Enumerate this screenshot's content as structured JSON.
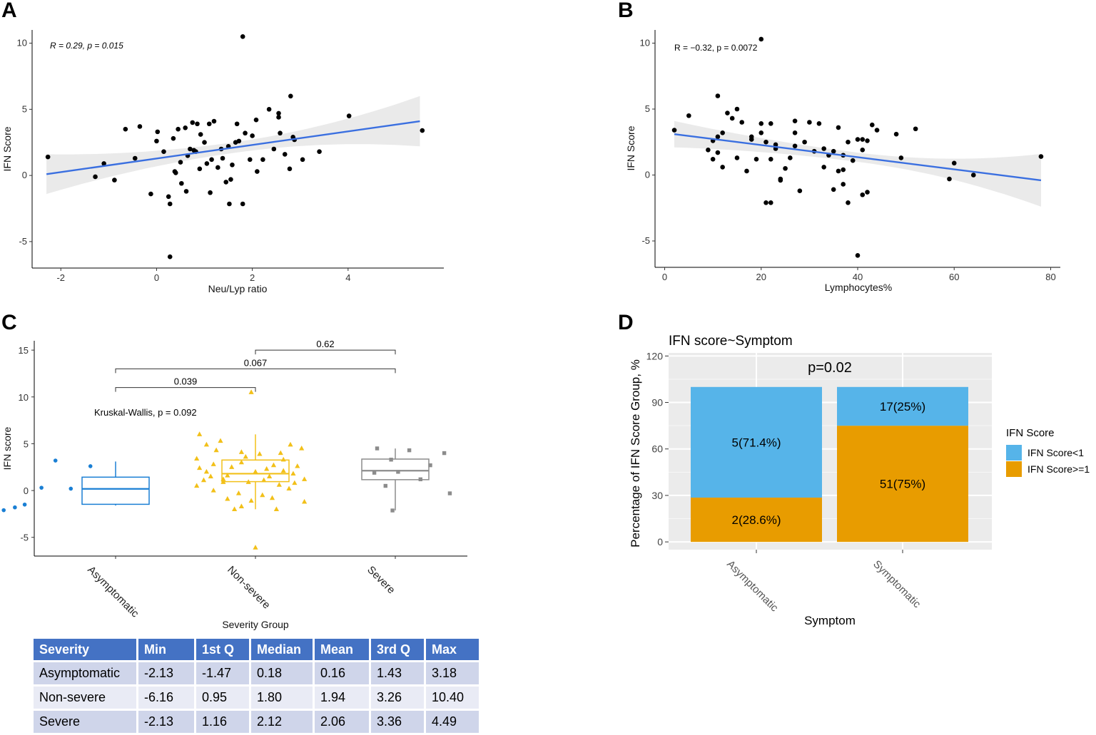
{
  "panels": {
    "a": "A",
    "b": "B",
    "c": "C",
    "d": "D"
  },
  "chart_data": [
    {
      "id": "A",
      "type": "scatter",
      "xlabel": "Neu/Lyp ratio",
      "ylabel": "IFN Score",
      "xlim": [
        -2.6,
        6.0
      ],
      "ylim": [
        -7,
        11
      ],
      "xticks": [
        "-2",
        "0",
        "2",
        "4"
      ],
      "yticks": [
        "-5",
        "0",
        "5",
        "10"
      ],
      "annotation": "R = 0.29, p = 0.015",
      "fit": {
        "start": [
          -2.3,
          0.1
        ],
        "end": [
          5.5,
          4.1
        ]
      },
      "band_half_width": {
        "left": 1.5,
        "center": 0.4,
        "right": 1.9
      },
      "points": [
        [
          -2.27,
          1.4
        ],
        [
          -1.28,
          -0.1
        ],
        [
          -1.1,
          0.9
        ],
        [
          -0.88,
          -0.35
        ],
        [
          -0.65,
          3.5
        ],
        [
          -0.45,
          1.3
        ],
        [
          -0.35,
          3.7
        ],
        [
          -0.12,
          -1.4
        ],
        [
          0.0,
          2.6
        ],
        [
          0.02,
          3.3
        ],
        [
          0.15,
          1.8
        ],
        [
          0.25,
          -1.6
        ],
        [
          0.28,
          -6.15
        ],
        [
          0.28,
          -2.15
        ],
        [
          0.35,
          2.8
        ],
        [
          0.38,
          0.3
        ],
        [
          0.4,
          0.2
        ],
        [
          0.45,
          3.5
        ],
        [
          0.5,
          1.0
        ],
        [
          0.52,
          -0.6
        ],
        [
          0.6,
          3.6
        ],
        [
          0.62,
          -1.2
        ],
        [
          0.65,
          1.5
        ],
        [
          0.7,
          2.0
        ],
        [
          0.75,
          4.0
        ],
        [
          0.78,
          1.9
        ],
        [
          0.82,
          1.8
        ],
        [
          0.85,
          3.9
        ],
        [
          0.9,
          0.5
        ],
        [
          0.92,
          3.1
        ],
        [
          1.0,
          2.5
        ],
        [
          1.05,
          0.9
        ],
        [
          1.1,
          3.9
        ],
        [
          1.12,
          -1.3
        ],
        [
          1.15,
          1.2
        ],
        [
          1.2,
          4.1
        ],
        [
          1.28,
          0.6
        ],
        [
          1.35,
          2.0
        ],
        [
          1.38,
          1.3
        ],
        [
          1.45,
          -0.5
        ],
        [
          1.5,
          2.2
        ],
        [
          1.52,
          -2.15
        ],
        [
          1.55,
          -0.3
        ],
        [
          1.58,
          0.8
        ],
        [
          1.65,
          2.5
        ],
        [
          1.68,
          3.9
        ],
        [
          1.72,
          2.6
        ],
        [
          1.8,
          10.5
        ],
        [
          1.8,
          -2.15
        ],
        [
          1.85,
          3.2
        ],
        [
          1.95,
          1.2
        ],
        [
          2.0,
          3.0
        ],
        [
          2.08,
          4.2
        ],
        [
          2.1,
          0.3
        ],
        [
          2.22,
          1.2
        ],
        [
          2.35,
          5.0
        ],
        [
          2.45,
          2.0
        ],
        [
          2.55,
          4.4
        ],
        [
          2.55,
          4.7
        ],
        [
          2.58,
          3.2
        ],
        [
          2.68,
          1.6
        ],
        [
          2.78,
          0.5
        ],
        [
          2.8,
          6.0
        ],
        [
          2.85,
          2.9
        ],
        [
          2.88,
          2.7
        ],
        [
          3.05,
          1.2
        ],
        [
          3.4,
          1.8
        ],
        [
          4.02,
          4.5
        ],
        [
          5.55,
          3.4
        ]
      ]
    },
    {
      "id": "B",
      "type": "scatter",
      "xlabel": "Lymphocytes%",
      "ylabel": "IFN Score",
      "xlim": [
        -2,
        82
      ],
      "ylim": [
        -7,
        11
      ],
      "xticks": [
        "0",
        "20",
        "40",
        "60",
        "80"
      ],
      "yticks": [
        "-5",
        "0",
        "5",
        "10"
      ],
      "annotation": "R = −0.32, p = 0.0072",
      "fit": {
        "start": [
          2,
          3.1
        ],
        "end": [
          78,
          -0.4
        ]
      },
      "band_half_width": {
        "left": 1.0,
        "center": 0.35,
        "right": 2.0
      },
      "points": [
        [
          2,
          3.4
        ],
        [
          5,
          4.5
        ],
        [
          9,
          1.9
        ],
        [
          10,
          2.6
        ],
        [
          10,
          1.2
        ],
        [
          11,
          6.0
        ],
        [
          11,
          2.9
        ],
        [
          11,
          1.7
        ],
        [
          12,
          3.2
        ],
        [
          12,
          0.6
        ],
        [
          13,
          4.7
        ],
        [
          14,
          4.3
        ],
        [
          15,
          5.0
        ],
        [
          15,
          1.3
        ],
        [
          16,
          4.0
        ],
        [
          17,
          0.3
        ],
        [
          18,
          2.9
        ],
        [
          18,
          2.7
        ],
        [
          19,
          1.2
        ],
        [
          20,
          3.9
        ],
        [
          20,
          3.2
        ],
        [
          20,
          10.3
        ],
        [
          21,
          2.5
        ],
        [
          21,
          -2.1
        ],
        [
          22,
          -2.1
        ],
        [
          22,
          3.9
        ],
        [
          22,
          1.2
        ],
        [
          23,
          2.3
        ],
        [
          23,
          2.0
        ],
        [
          24,
          -0.3
        ],
        [
          24,
          -0.4
        ],
        [
          25,
          0.5
        ],
        [
          26,
          1.3
        ],
        [
          27,
          3.2
        ],
        [
          27,
          4.1
        ],
        [
          27,
          2.2
        ],
        [
          28,
          -1.2
        ],
        [
          29,
          2.5
        ],
        [
          30,
          4.0
        ],
        [
          31,
          1.8
        ],
        [
          32,
          3.9
        ],
        [
          33,
          0.6
        ],
        [
          33,
          2.0
        ],
        [
          34,
          1.5
        ],
        [
          35,
          1.8
        ],
        [
          35,
          -1.1
        ],
        [
          36,
          3.6
        ],
        [
          36,
          0.3
        ],
        [
          37,
          -0.7
        ],
        [
          37,
          0.4
        ],
        [
          37,
          1.5
        ],
        [
          38,
          2.5
        ],
        [
          38,
          -2.1
        ],
        [
          39,
          1.1
        ],
        [
          40,
          -6.1
        ],
        [
          40,
          2.7
        ],
        [
          41,
          2.7
        ],
        [
          41,
          1.9
        ],
        [
          41,
          -1.5
        ],
        [
          42,
          -1.3
        ],
        [
          42,
          2.6
        ],
        [
          43,
          3.8
        ],
        [
          44,
          3.4
        ],
        [
          48,
          3.1
        ],
        [
          49,
          1.3
        ],
        [
          52,
          3.5
        ],
        [
          59,
          -0.3
        ],
        [
          60,
          0.9
        ],
        [
          64,
          0.0
        ],
        [
          78,
          1.4
        ]
      ]
    },
    {
      "id": "C",
      "type": "box",
      "xlabel": "Severity Group",
      "ylabel": "IFN score",
      "ylim": [
        -7,
        16
      ],
      "yticks": [
        "-5",
        "0",
        "5",
        "10",
        "15"
      ],
      "categories": [
        "Asymptomatic",
        "Non-severe",
        "Severe"
      ],
      "colors": [
        "#1a7fd4",
        "#f2c019",
        "#8c8c8c"
      ],
      "markers": [
        "circle",
        "triangle",
        "square"
      ],
      "boxes": [
        {
          "group": "Asymptomatic",
          "min": -2.13,
          "q1": -1.47,
          "median": 0.18,
          "q3": 1.43,
          "max": 3.18
        },
        {
          "group": "Non-severe",
          "min": -6.16,
          "q1": 0.95,
          "median": 1.8,
          "q3": 3.26,
          "max": 10.4
        },
        {
          "group": "Severe",
          "min": -2.13,
          "q1": 1.16,
          "median": 2.12,
          "q3": 3.36,
          "max": 4.49
        }
      ],
      "whisker_ends": [
        [
          -1.6,
          3.1
        ],
        [
          -2.0,
          6.0
        ],
        [
          -2.13,
          4.49
        ]
      ],
      "points": [
        [
          [
            0.2,
            -2.1
          ],
          [
            0.28,
            -1.8
          ],
          [
            0.35,
            -1.5
          ],
          [
            0.47,
            0.3
          ],
          [
            0.68,
            0.2
          ],
          [
            0.57,
            3.2
          ],
          [
            0.82,
            2.6
          ]
        ],
        [
          [
            1.97,
            10.5
          ],
          [
            2.0,
            -6.1
          ],
          [
            1.9,
            -1.7
          ],
          [
            1.85,
            -2.0
          ],
          [
            2.15,
            -2.0
          ],
          [
            2.35,
            -1.2
          ],
          [
            1.6,
            6.0
          ],
          [
            1.65,
            4.9
          ],
          [
            1.75,
            5.3
          ],
          [
            2.25,
            4.9
          ],
          [
            2.33,
            4.5
          ],
          [
            1.58,
            3.4
          ],
          [
            1.7,
            2.8
          ],
          [
            1.9,
            3.0
          ],
          [
            2.08,
            2.3
          ],
          [
            2.2,
            3.3
          ],
          [
            1.65,
            2.0
          ],
          [
            1.8,
            1.6
          ],
          [
            2.0,
            2.0
          ],
          [
            2.1,
            1.5
          ],
          [
            2.27,
            1.8
          ],
          [
            1.63,
            1.1
          ],
          [
            1.77,
            0.9
          ],
          [
            1.95,
            0.9
          ],
          [
            2.17,
            0.6
          ],
          [
            1.7,
            0.0
          ],
          [
            1.88,
            -0.3
          ],
          [
            2.05,
            -0.5
          ],
          [
            2.24,
            0.2
          ],
          [
            1.6,
            2.4
          ],
          [
            2.3,
            2.6
          ],
          [
            1.8,
            -0.9
          ],
          [
            1.97,
            -1.1
          ],
          [
            2.12,
            -0.8
          ],
          [
            1.72,
            4.3
          ],
          [
            1.9,
            4.1
          ],
          [
            2.03,
            3.9
          ],
          [
            2.18,
            4.0
          ],
          [
            1.68,
            1.5
          ],
          [
            2.35,
            1.2
          ],
          [
            1.58,
            0.5
          ],
          [
            2.28,
            0.8
          ],
          [
            1.83,
            2.5
          ],
          [
            2.13,
            2.7
          ],
          [
            1.93,
            3.6
          ],
          [
            1.77,
            1.2
          ],
          [
            2.06,
            1.1
          ],
          [
            2.2,
            2.1
          ]
        ],
        [
          [
            2.87,
            4.5
          ],
          [
            3.1,
            4.3
          ],
          [
            3.35,
            4.0
          ],
          [
            2.97,
            3.3
          ],
          [
            3.25,
            2.7
          ],
          [
            2.85,
            1.9
          ],
          [
            3.02,
            2.0
          ],
          [
            3.18,
            1.2
          ],
          [
            2.93,
            0.5
          ],
          [
            3.39,
            -0.3
          ],
          [
            2.98,
            -2.13
          ]
        ]
      ],
      "brackets": [
        {
          "from": 1,
          "to": 2,
          "label": "0.039",
          "y": 11.0
        },
        {
          "from": 1,
          "to": 3,
          "label": "0.067",
          "y": 13.0
        },
        {
          "from": 2,
          "to": 3,
          "label": "0.62",
          "y": 15.0
        }
      ],
      "annotation": "Kruskal-Wallis, p = 0.092"
    },
    {
      "id": "D",
      "type": "bar",
      "stacked": true,
      "title": "IFN score~Symptom",
      "xlabel": "Symptom",
      "ylabel": "Percentage of IFN Score Group, %",
      "ylim": [
        -5,
        122
      ],
      "yticks": [
        "0",
        "30",
        "60",
        "90",
        "120"
      ],
      "categories": [
        "Asymptomatic",
        "Symptomatic"
      ],
      "legend_title": "IFN Score",
      "series": [
        {
          "name": "IFN Score>=1",
          "color": "#e89c00",
          "values": [
            28.6,
            75
          ],
          "labels": [
            "2(28.6%)",
            "51(75%)"
          ]
        },
        {
          "name": "IFN Score<1",
          "color": "#56b4e9",
          "values": [
            71.4,
            25
          ],
          "labels": [
            "5(71.4%)",
            "17(25%)"
          ]
        }
      ],
      "annotation": "p=0.02"
    }
  ],
  "table": {
    "header": [
      "Severity",
      "Min",
      "1st Q",
      "Median",
      "Mean",
      "3rd Q",
      "Max"
    ],
    "rows": [
      [
        "Asymptomatic",
        "-2.13",
        "-1.47",
        "0.18",
        "0.16",
        "1.43",
        "3.18"
      ],
      [
        "Non-severe",
        "-6.16",
        "0.95",
        "1.80",
        "1.94",
        "3.26",
        "10.40"
      ],
      [
        "Severe",
        "-2.13",
        "1.16",
        "2.12",
        "2.06",
        "3.36",
        "4.49"
      ]
    ]
  }
}
